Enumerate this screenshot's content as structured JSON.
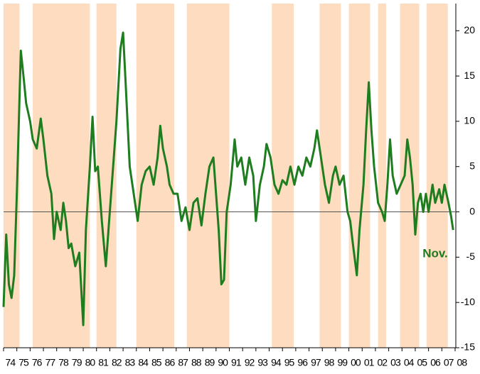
{
  "chart_data": {
    "type": "line",
    "color": "#1e7d1e",
    "band_color": "#fddcc0",
    "xlim": [
      1974,
      2008
    ],
    "ylim": [
      -15,
      23
    ],
    "yticks": [
      -15,
      -10,
      -5,
      0,
      5,
      10,
      15,
      20
    ],
    "xticks": [
      {
        "value": 1974,
        "label": "74"
      },
      {
        "value": 1975,
        "label": "75"
      },
      {
        "value": 1976,
        "label": "76"
      },
      {
        "value": 1977,
        "label": "77"
      },
      {
        "value": 1978,
        "label": "78"
      },
      {
        "value": 1979,
        "label": "79"
      },
      {
        "value": 1980,
        "label": "80"
      },
      {
        "value": 1981,
        "label": "81"
      },
      {
        "value": 1982,
        "label": "82"
      },
      {
        "value": 1983,
        "label": "83"
      },
      {
        "value": 1984,
        "label": "84"
      },
      {
        "value": 1985,
        "label": "85"
      },
      {
        "value": 1986,
        "label": "86"
      },
      {
        "value": 1987,
        "label": "87"
      },
      {
        "value": 1988,
        "label": "88"
      },
      {
        "value": 1989,
        "label": "89"
      },
      {
        "value": 1990,
        "label": "90"
      },
      {
        "value": 1991,
        "label": "91"
      },
      {
        "value": 1992,
        "label": "92"
      },
      {
        "value": 1993,
        "label": "93"
      },
      {
        "value": 1994,
        "label": "94"
      },
      {
        "value": 1995,
        "label": "95"
      },
      {
        "value": 1996,
        "label": "96"
      },
      {
        "value": 1997,
        "label": "97"
      },
      {
        "value": 1998,
        "label": "98"
      },
      {
        "value": 1999,
        "label": "99"
      },
      {
        "value": 2000,
        "label": "00"
      },
      {
        "value": 2001,
        "label": "01"
      },
      {
        "value": 2002,
        "label": "02"
      },
      {
        "value": 2003,
        "label": "03"
      },
      {
        "value": 2004,
        "label": "04"
      },
      {
        "value": 2005,
        "label": "05"
      },
      {
        "value": 2006,
        "label": "06"
      },
      {
        "value": 2007,
        "label": "07"
      },
      {
        "value": 2008,
        "label": "08"
      }
    ],
    "bands": [
      [
        1974.0,
        1975.2
      ],
      [
        1976.2,
        1980.5
      ],
      [
        1981.0,
        1982.5
      ],
      [
        1984.0,
        1986.85
      ],
      [
        1987.8,
        1991.0
      ],
      [
        1994.2,
        1995.85
      ],
      [
        1997.8,
        1999.4
      ],
      [
        2000.0,
        2001.6
      ],
      [
        2002.2,
        2002.8
      ],
      [
        2003.85,
        2005.3
      ],
      [
        2005.85,
        2007.45
      ]
    ],
    "annotation": "Nov.",
    "x": [
      1974.0,
      1974.2,
      1974.4,
      1974.6,
      1974.8,
      1975.0,
      1975.3,
      1975.5,
      1975.7,
      1976.0,
      1976.2,
      1976.5,
      1976.8,
      1977.0,
      1977.3,
      1977.6,
      1977.8,
      1978.0,
      1978.3,
      1978.5,
      1978.7,
      1978.9,
      1979.1,
      1979.4,
      1979.7,
      1980.0,
      1980.2,
      1980.5,
      1980.7,
      1980.9,
      1981.1,
      1981.4,
      1981.7,
      1981.9,
      1982.2,
      1982.5,
      1982.8,
      1983.0,
      1983.2,
      1983.5,
      1983.8,
      1984.1,
      1984.4,
      1984.7,
      1985.0,
      1985.3,
      1985.6,
      1985.8,
      1986.0,
      1986.3,
      1986.5,
      1986.8,
      1987.1,
      1987.4,
      1987.7,
      1988.0,
      1988.3,
      1988.6,
      1988.9,
      1989.2,
      1989.5,
      1989.8,
      1990.0,
      1990.2,
      1990.4,
      1990.6,
      1990.8,
      1991.1,
      1991.4,
      1991.6,
      1991.9,
      1992.2,
      1992.5,
      1992.8,
      1993.0,
      1993.3,
      1993.6,
      1993.8,
      1994.1,
      1994.4,
      1994.7,
      1995.0,
      1995.3,
      1995.6,
      1995.9,
      1996.2,
      1996.5,
      1996.8,
      1997.1,
      1997.4,
      1997.6,
      1997.9,
      1998.2,
      1998.5,
      1998.8,
      1999.0,
      1999.3,
      1999.6,
      1999.9,
      2000.1,
      2000.3,
      2000.6,
      2000.8,
      2001.1,
      2001.3,
      2001.5,
      2001.7,
      2001.9,
      2002.2,
      2002.5,
      2002.7,
      2002.9,
      2003.1,
      2003.3,
      2003.6,
      2003.9,
      2004.2,
      2004.4,
      2004.6,
      2004.8,
      2005.0,
      2005.2,
      2005.4,
      2005.6,
      2005.8,
      2006.0,
      2006.3,
      2006.5,
      2006.8,
      2007.0,
      2007.2,
      2007.5,
      2007.7,
      2007.85
    ],
    "values": [
      -10.5,
      -2.5,
      -8,
      -9.5,
      -7,
      2,
      17.8,
      15,
      12,
      10,
      8,
      7,
      10.3,
      8,
      4,
      2,
      -3,
      0,
      -2,
      1,
      -1,
      -4,
      -3.5,
      -6,
      -4.5,
      -12.5,
      -2,
      5,
      10.5,
      4.5,
      5,
      -1,
      -6,
      -2,
      4,
      10,
      18,
      19.8,
      14,
      5,
      2,
      -1,
      3,
      4.5,
      5,
      3,
      6,
      9.5,
      7,
      5,
      3,
      2,
      2,
      -1,
      0.5,
      -2,
      1,
      1.5,
      -1.5,
      2,
      5,
      6,
      2,
      -2,
      -8,
      -7.5,
      0,
      3,
      8,
      5,
      6,
      3,
      6,
      4,
      -1,
      3,
      5,
      7.5,
      6,
      3,
      2,
      3.5,
      3,
      5,
      3,
      5,
      4,
      6,
      5,
      7,
      9,
      6,
      3,
      1,
      4,
      5,
      3,
      4,
      0,
      -1,
      -3.5,
      -7,
      -2,
      3,
      9,
      14.3,
      9,
      5,
      1,
      0,
      -1,
      3,
      8,
      4,
      2,
      3,
      4,
      8,
      6,
      3,
      -2.5,
      1,
      2,
      0,
      2,
      0,
      3,
      1,
      2.5,
      1,
      3,
      1,
      -0.5,
      -2
    ]
  }
}
